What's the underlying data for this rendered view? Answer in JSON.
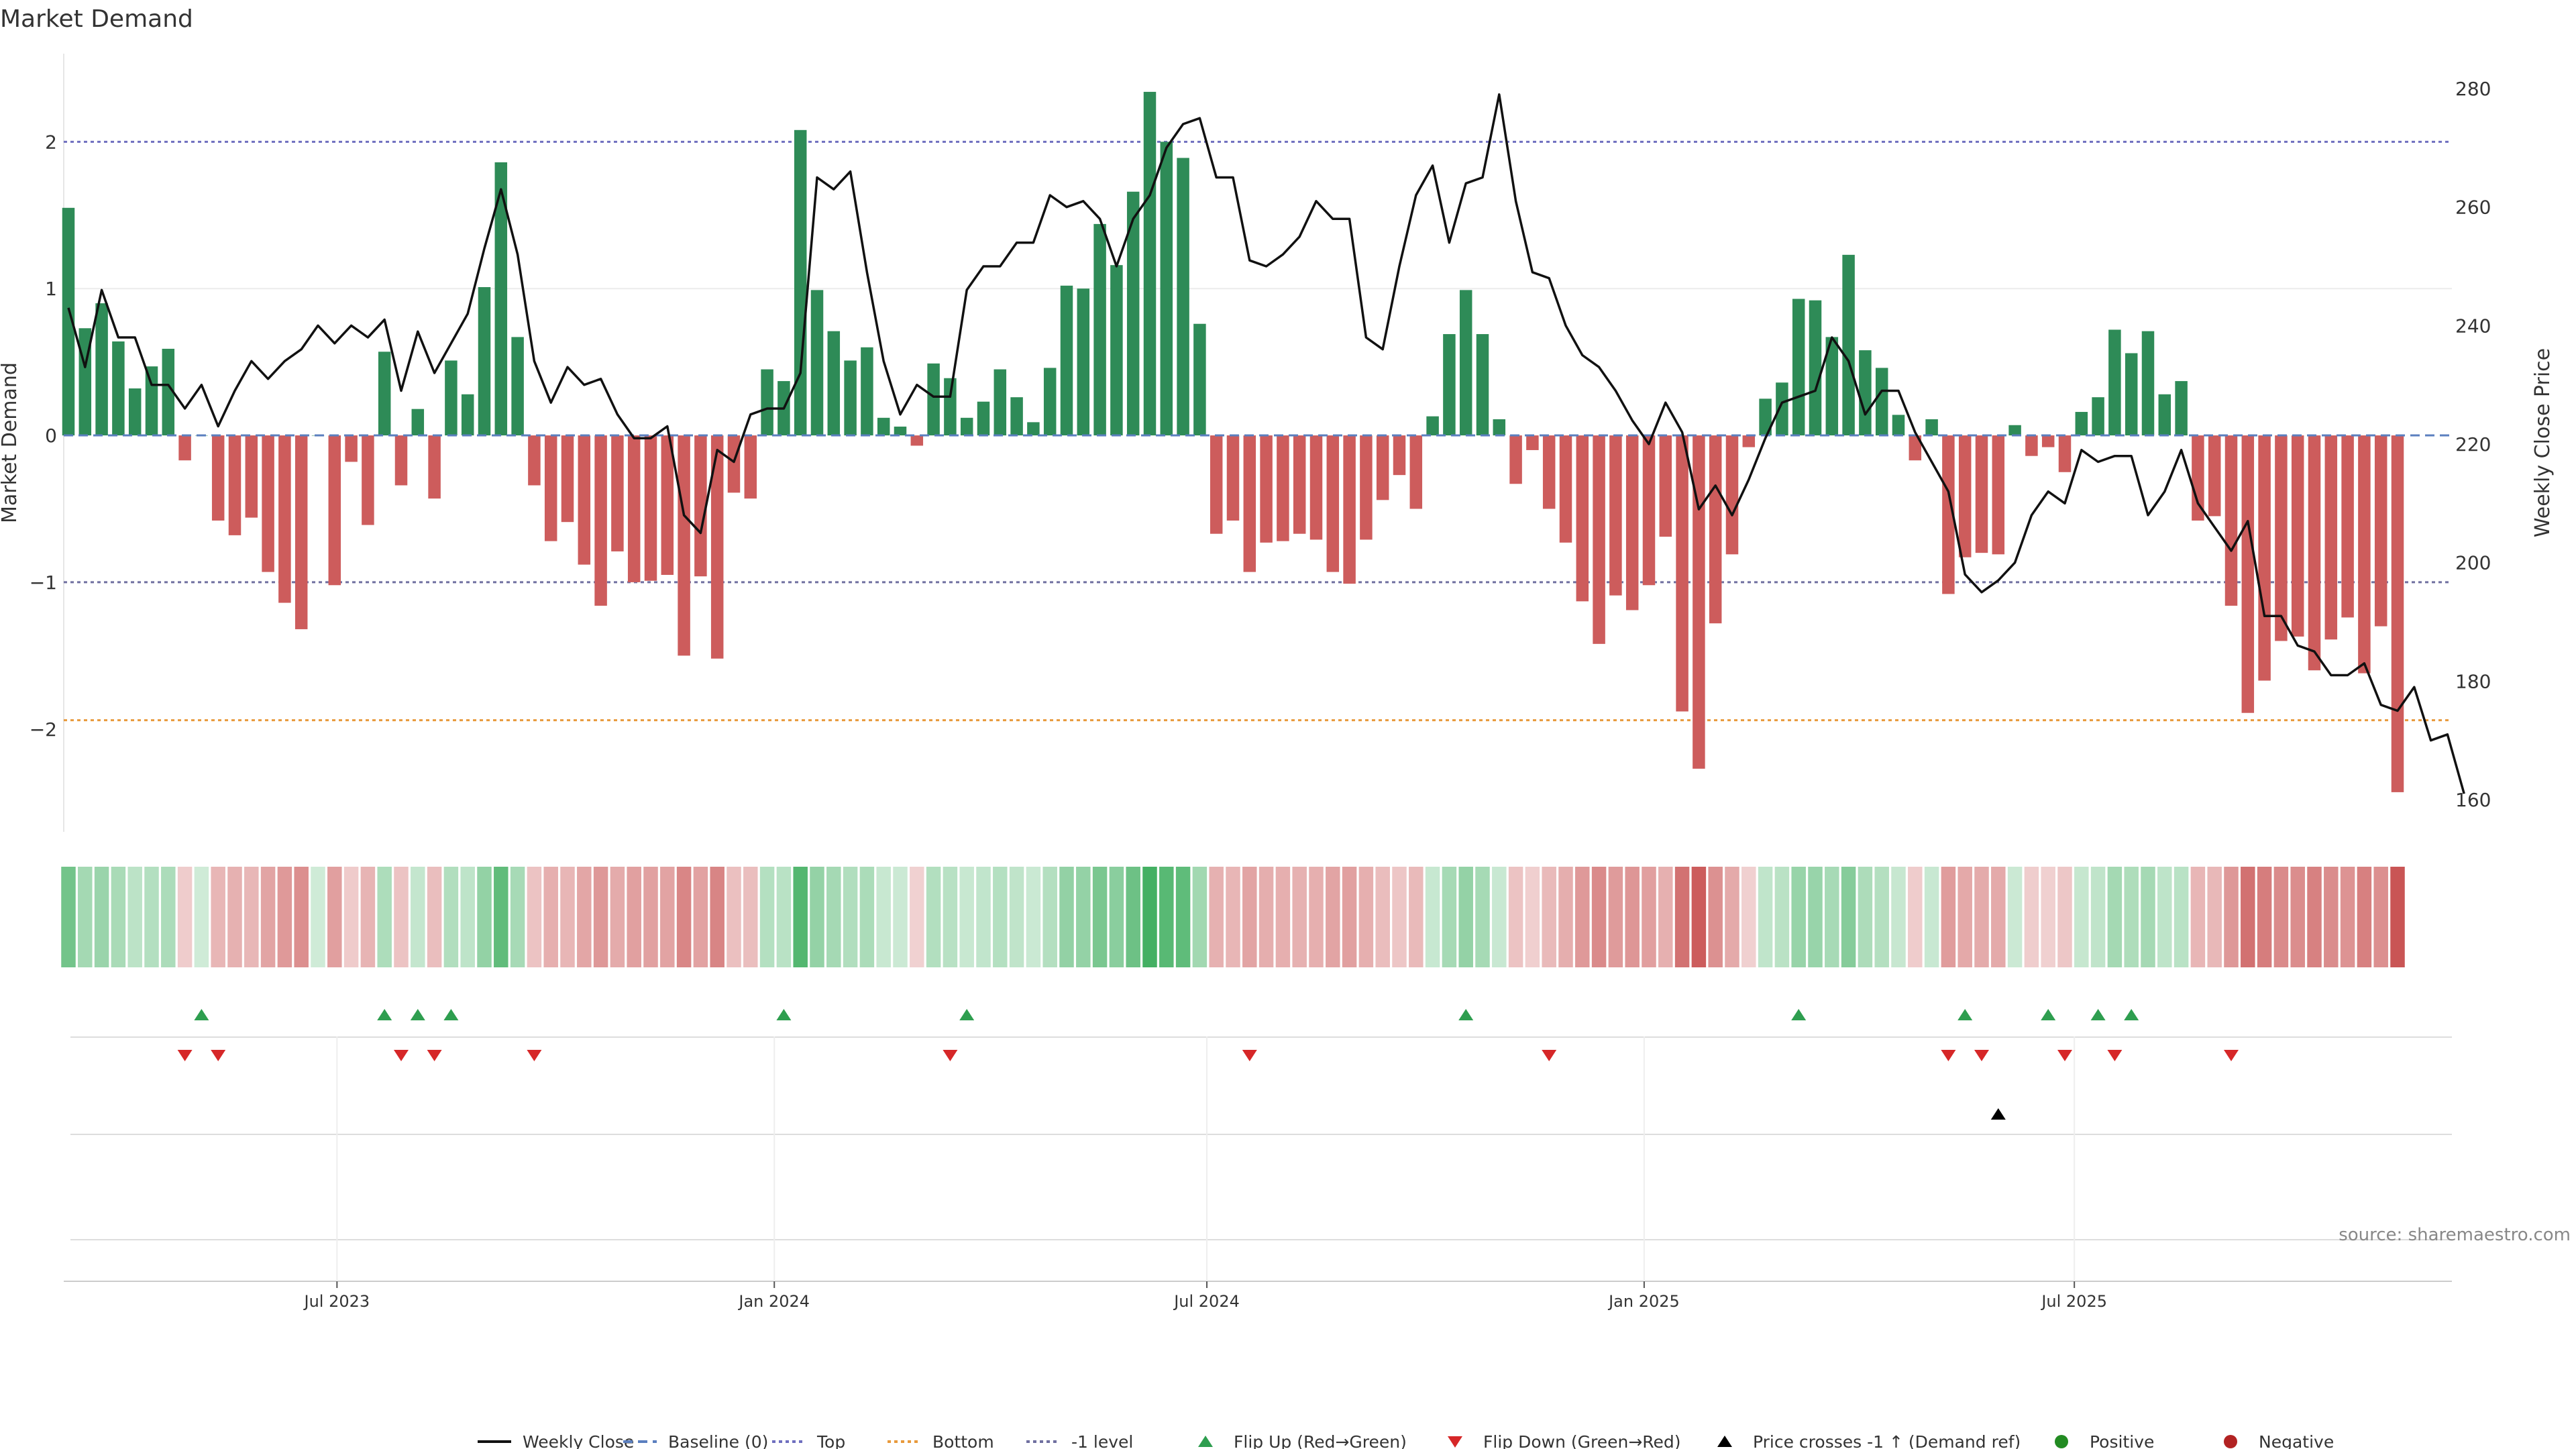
{
  "chart_data": {
    "type": "bar",
    "title": "Market Demand",
    "ylabel_left": "Market Demand",
    "ylabel_right": "Weekly Close Price",
    "ylim_left": [
      -2.7,
      2.6
    ],
    "ylim_right": [
      160,
      280
    ],
    "yticks_left": [
      2,
      1,
      0,
      -1,
      -2
    ],
    "yticks_left_labels": [
      "2",
      "1",
      "0",
      "−1",
      "−2"
    ],
    "yticks_right": [
      280,
      260,
      240,
      220,
      200,
      180,
      160
    ],
    "reference_lines": {
      "top": 2.0,
      "bottom": -1.94,
      "minus_one": -1.0,
      "baseline": 0
    },
    "x_start": "2023-03-10",
    "x_tick_labels": [
      "Jul 2023",
      "Jan 2024",
      "Jul 2024",
      "Jan 2025",
      "Jul 2025"
    ],
    "x_tick_dates": [
      "2023-07-01",
      "2024-01-01",
      "2024-07-01",
      "2025-01-01",
      "2025-07-01"
    ],
    "demand": [
      1.55,
      0.73,
      0.9,
      0.64,
      0.32,
      0.47,
      0.59,
      -0.17,
      0.0,
      -0.58,
      -0.68,
      -0.56,
      -0.93,
      -1.14,
      -1.32,
      0.0,
      -1.02,
      -0.18,
      -0.61,
      0.57,
      -0.34,
      0.18,
      -0.43,
      0.51,
      0.28,
      1.01,
      1.86,
      0.67,
      -0.34,
      -0.72,
      -0.59,
      -0.88,
      -1.16,
      -0.79,
      -1.0,
      -0.99,
      -0.95,
      -1.5,
      -0.96,
      -1.52,
      -0.39,
      -0.43,
      0.45,
      0.37,
      2.08,
      0.99,
      0.71,
      0.51,
      0.6,
      0.12,
      0.06,
      -0.07,
      0.49,
      0.39,
      0.12,
      0.23,
      0.45,
      0.26,
      0.09,
      0.46,
      1.02,
      1.0,
      1.44,
      1.16,
      1.66,
      2.34,
      2.0,
      1.89,
      0.76,
      -0.67,
      -0.58,
      -0.93,
      -0.73,
      -0.72,
      -0.67,
      -0.71,
      -0.93,
      -1.01,
      -0.71,
      -0.44,
      -0.27,
      -0.5,
      0.13,
      0.69,
      0.99,
      0.69,
      0.11,
      -0.33,
      -0.1,
      -0.5,
      -0.73,
      -1.13,
      -1.42,
      -1.09,
      -1.19,
      -1.02,
      -0.69,
      -1.88,
      -2.27,
      -1.28,
      -0.81,
      -0.08,
      0.25,
      0.36,
      0.93,
      0.92,
      0.67,
      1.23,
      0.58,
      0.46,
      0.14,
      -0.17,
      0.11,
      -1.08,
      -0.83,
      -0.8,
      -0.81,
      0.07,
      -0.14,
      -0.08,
      -0.25,
      0.16,
      0.26,
      0.72,
      0.56,
      0.71,
      0.28,
      0.37,
      -0.58,
      -0.55,
      -1.16,
      -1.89,
      -1.67,
      -1.4,
      -1.37,
      -1.6,
      -1.39,
      -1.24,
      -1.62,
      -1.3,
      -2.43
    ],
    "price": [
      243,
      233,
      246,
      238,
      238,
      230,
      230,
      226,
      230,
      223,
      229,
      234,
      231,
      234,
      236,
      240,
      237,
      240,
      238,
      241,
      229,
      239,
      232,
      237,
      242,
      253,
      263,
      252,
      234,
      227,
      233,
      230,
      231,
      225,
      221,
      221,
      223,
      208,
      205,
      219,
      217,
      225,
      226,
      226,
      232,
      265,
      263,
      266,
      249,
      234,
      225,
      230,
      228,
      228,
      246,
      250,
      250,
      254,
      254,
      262,
      260,
      261,
      258,
      250,
      258,
      262,
      270,
      274,
      275,
      265,
      265,
      251,
      250,
      252,
      255,
      261,
      258,
      258,
      238,
      236,
      250,
      262,
      267,
      254,
      264,
      265,
      279,
      261,
      249,
      248,
      240,
      235,
      233,
      229,
      224,
      220,
      227,
      222,
      209,
      213,
      208,
      214,
      221,
      227,
      228,
      229,
      238,
      234,
      225,
      229,
      229,
      222,
      217,
      212,
      198,
      195,
      197,
      200,
      208,
      212,
      210,
      219,
      217,
      218,
      218,
      208,
      212,
      219,
      210,
      206,
      202,
      207,
      191,
      191,
      186,
      185,
      181,
      181,
      183,
      176,
      175,
      179,
      170,
      171,
      161
    ],
    "flip_up": [
      8,
      19,
      21,
      23,
      43,
      54,
      84,
      104,
      114,
      119,
      122,
      124
    ],
    "flip_down": [
      7,
      9,
      20,
      22,
      28,
      53,
      71,
      89,
      113,
      115,
      120,
      123,
      130
    ],
    "price_cross": [
      116
    ],
    "series": [
      {
        "name": "Weekly Close"
      },
      {
        "name": "Baseline (0)"
      },
      {
        "name": "Top"
      },
      {
        "name": "Bottom"
      },
      {
        "name": "-1 level"
      },
      {
        "name": "Flip Up (Red→Green)"
      },
      {
        "name": "Flip Down (Green→Red)"
      },
      {
        "name": "Price crosses -1 ↑ (Demand ref)"
      },
      {
        "name": "Positive"
      },
      {
        "name": "Negative"
      }
    ],
    "legend_position": "bottom",
    "colors": {
      "positive": "#2e8b57",
      "negative": "#cd5c5c",
      "price": "#111111",
      "baseline": "#5b7fbf",
      "top": "#6f6fbf",
      "bottom": "#e89a3c",
      "minus_one": "#7070a0",
      "flip_up": "#2e9e4f",
      "flip_down": "#d62728",
      "cross": "#000000",
      "positive_dot": "#228b22",
      "negative_dot": "#b22222"
    }
  },
  "source": "source: sharemaestro.com"
}
